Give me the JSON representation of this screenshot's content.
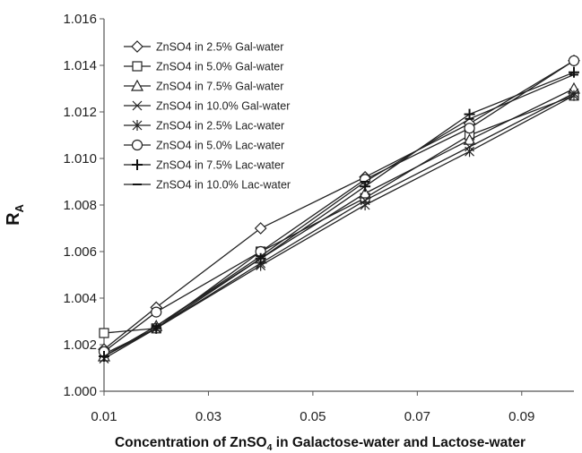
{
  "chart_data": {
    "type": "line",
    "title": "",
    "xlabel_main": "Concentration of ZnSO",
    "xlabel_sub": "4",
    "xlabel_rest": " in Galactose-water and Lactose-water",
    "ylabel_main": "R",
    "ylabel_sub": "A",
    "xlim": [
      0.01,
      0.1
    ],
    "ylim": [
      1.0,
      1.016
    ],
    "x_ticks": [
      "0.01",
      "0.03",
      "0.05",
      "0.07",
      "0.09"
    ],
    "x_tick_values": [
      0.01,
      0.03,
      0.05,
      0.07,
      0.09
    ],
    "y_ticks": [
      "1.000",
      "1.002",
      "1.004",
      "1.006",
      "1.008",
      "1.010",
      "1.012",
      "1.014",
      "1.016"
    ],
    "y_tick_values": [
      1.0,
      1.002,
      1.004,
      1.006,
      1.008,
      1.01,
      1.012,
      1.014,
      1.016
    ],
    "grid": false,
    "legend_position": "top-left",
    "x": [
      0.01,
      0.02,
      0.04,
      0.06,
      0.08,
      0.1
    ],
    "series": [
      {
        "name": "ZnSO4 in 2.5% Gal-water",
        "marker": "diamond",
        "values": [
          1.0018,
          1.0036,
          1.007,
          1.0092,
          1.0115,
          1.0142
        ]
      },
      {
        "name": "ZnSO4 in 5.0% Gal-water",
        "marker": "square",
        "values": [
          1.0025,
          1.0027,
          1.006,
          1.0083,
          1.011,
          1.0127
        ]
      },
      {
        "name": "ZnSO4 in 7.5% Gal-water",
        "marker": "triangle",
        "values": [
          1.0015,
          1.0028,
          1.0057,
          1.0085,
          1.0108,
          1.013
        ]
      },
      {
        "name": "ZnSO4 in 10.0% Gal-water",
        "marker": "x",
        "values": [
          1.0014,
          1.0027,
          1.0055,
          1.0082,
          1.0105,
          1.0128
        ]
      },
      {
        "name": "ZnSO4 in 2.5% Lac-water",
        "marker": "asterisk",
        "values": [
          1.0016,
          1.0027,
          1.0054,
          1.008,
          1.0103,
          1.0127
        ]
      },
      {
        "name": "ZnSO4 in 5.0% Lac-water",
        "marker": "circle",
        "values": [
          1.0017,
          1.0034,
          1.006,
          1.0091,
          1.0113,
          1.0142
        ]
      },
      {
        "name": "ZnSO4 in 7.5% Lac-water",
        "marker": "plus",
        "values": [
          1.0015,
          1.0027,
          1.0057,
          1.0088,
          1.0119,
          1.0137
        ]
      },
      {
        "name": "ZnSO4 in 10.0% Lac-water",
        "marker": "dash",
        "values": [
          1.0015,
          1.0028,
          1.0058,
          1.009,
          1.0117,
          1.0136
        ]
      }
    ]
  }
}
